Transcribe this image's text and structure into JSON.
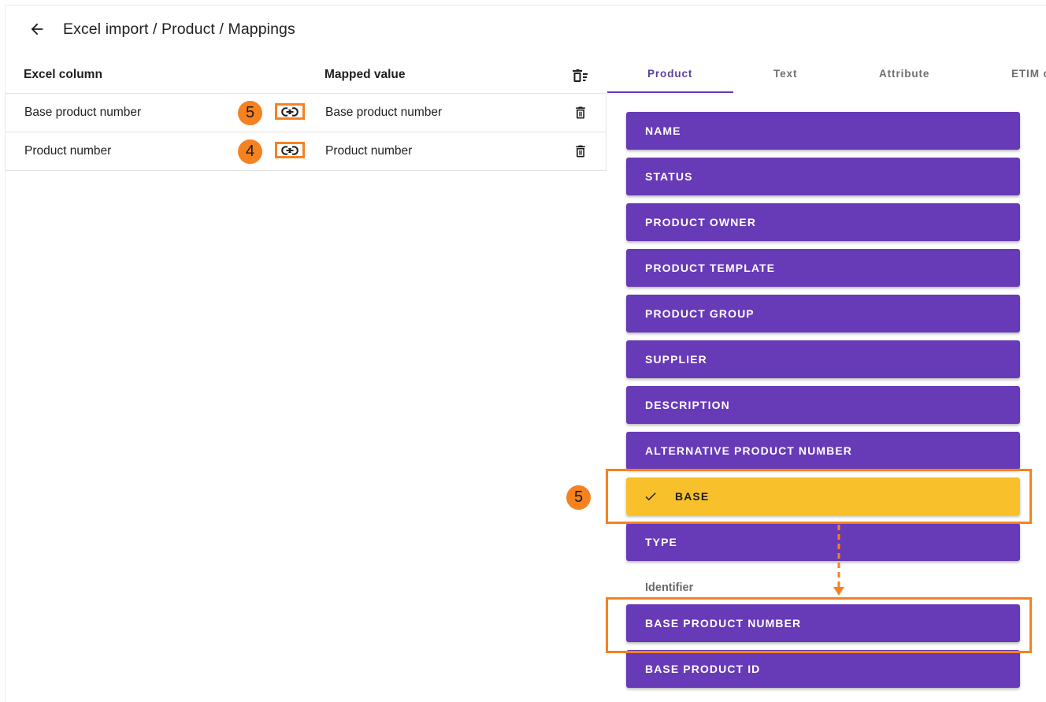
{
  "header": {
    "title": "Excel import / Product / Mappings"
  },
  "table": {
    "col_header_excel": "Excel column",
    "col_header_mapped": "Mapped value",
    "rows": [
      {
        "excel_column": "Base product number",
        "mapped_value": "Base product number",
        "step": "5"
      },
      {
        "excel_column": "Product number",
        "mapped_value": "Product number",
        "step": "4"
      }
    ]
  },
  "tabs": [
    {
      "label": "Product",
      "active": true
    },
    {
      "label": "Text"
    },
    {
      "label": "Attribute"
    },
    {
      "label": "ETIM class"
    }
  ],
  "fields": [
    {
      "label": "NAME"
    },
    {
      "label": "STATUS"
    },
    {
      "label": "PRODUCT OWNER"
    },
    {
      "label": "PRODUCT TEMPLATE"
    },
    {
      "label": "PRODUCT GROUP"
    },
    {
      "label": "SUPPLIER"
    },
    {
      "label": "DESCRIPTION"
    },
    {
      "label": "ALTERNATIVE PRODUCT NUMBER"
    },
    {
      "label": "BASE",
      "selected": true
    },
    {
      "label": "TYPE"
    }
  ],
  "identifier_group": {
    "label": "Identifier",
    "fields": [
      {
        "label": "BASE PRODUCT NUMBER"
      },
      {
        "label": "BASE PRODUCT ID"
      }
    ]
  },
  "annotation": {
    "step": "5"
  },
  "colors": {
    "accent": "#673ab7",
    "selected": "#f8c12b",
    "annotation": "#f58220"
  }
}
